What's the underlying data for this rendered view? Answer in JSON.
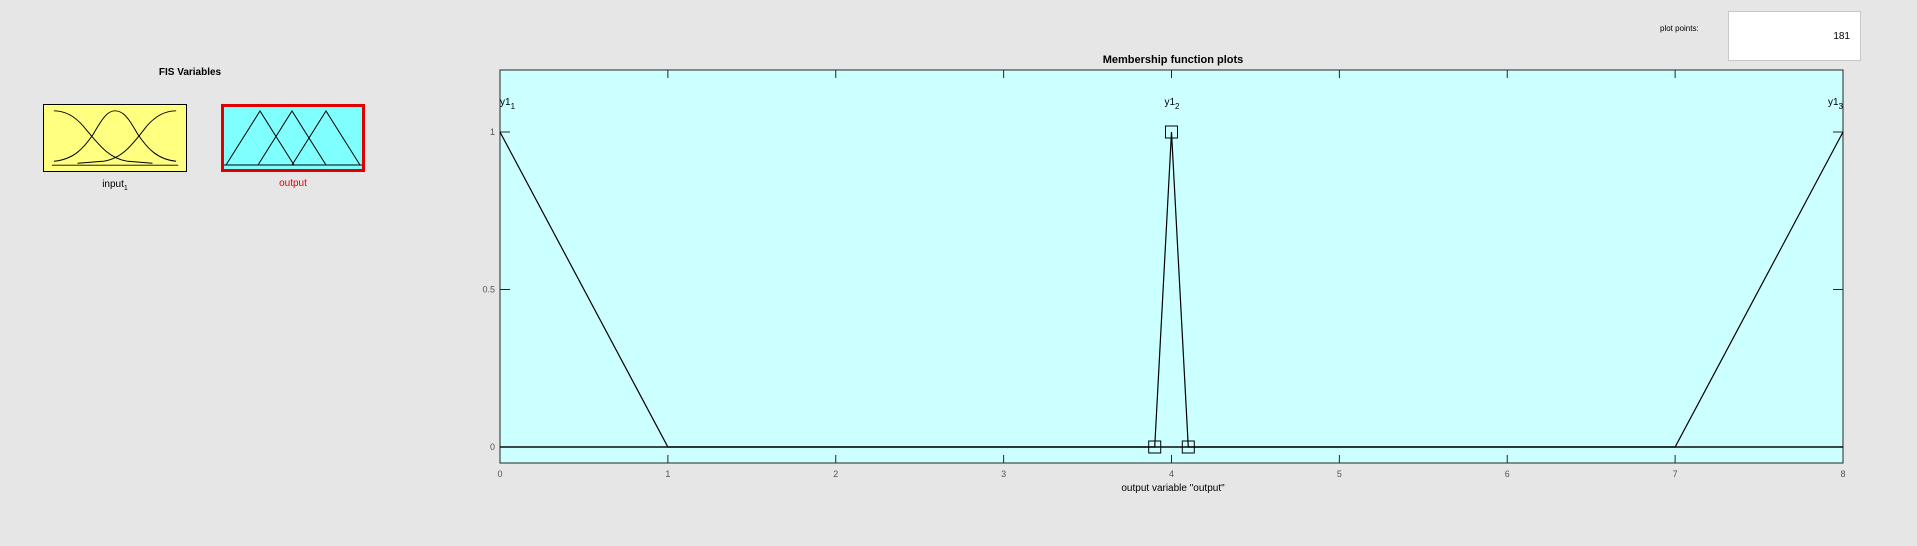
{
  "fis": {
    "title": "FIS Variables",
    "input": {
      "name": "input",
      "subscript": "1"
    },
    "output": {
      "name": "output"
    }
  },
  "plot_points": {
    "label": "plot points:",
    "value": "181"
  },
  "chart_data": {
    "type": "line",
    "title": "Membership function plots",
    "xlabel": "output variable \"output\"",
    "ylabel": "",
    "xlim": [
      0,
      8
    ],
    "ylim": [
      0,
      1
    ],
    "xticks": [
      "0",
      "1",
      "2",
      "3",
      "4",
      "5",
      "6",
      "7",
      "8"
    ],
    "yticks": [
      "0",
      "0.5",
      "1"
    ],
    "grid": false,
    "series": [
      {
        "name": "y1",
        "subscript": "1",
        "x": [
          0,
          1,
          8
        ],
        "y": [
          1,
          0,
          0
        ]
      },
      {
        "name": "y1",
        "subscript": "2",
        "x": [
          0,
          3.9,
          4,
          4.1,
          8
        ],
        "y": [
          0,
          0,
          1,
          0,
          0
        ]
      },
      {
        "name": "y1",
        "subscript": "3",
        "x": [
          0,
          7,
          8
        ],
        "y": [
          0,
          0,
          1
        ]
      }
    ],
    "handles": [
      {
        "x": 3.9,
        "y": 0
      },
      {
        "x": 4,
        "y": 1
      },
      {
        "x": 4.1,
        "y": 0
      }
    ],
    "colors": {
      "background": "#ccffff",
      "line": "#000000"
    }
  }
}
